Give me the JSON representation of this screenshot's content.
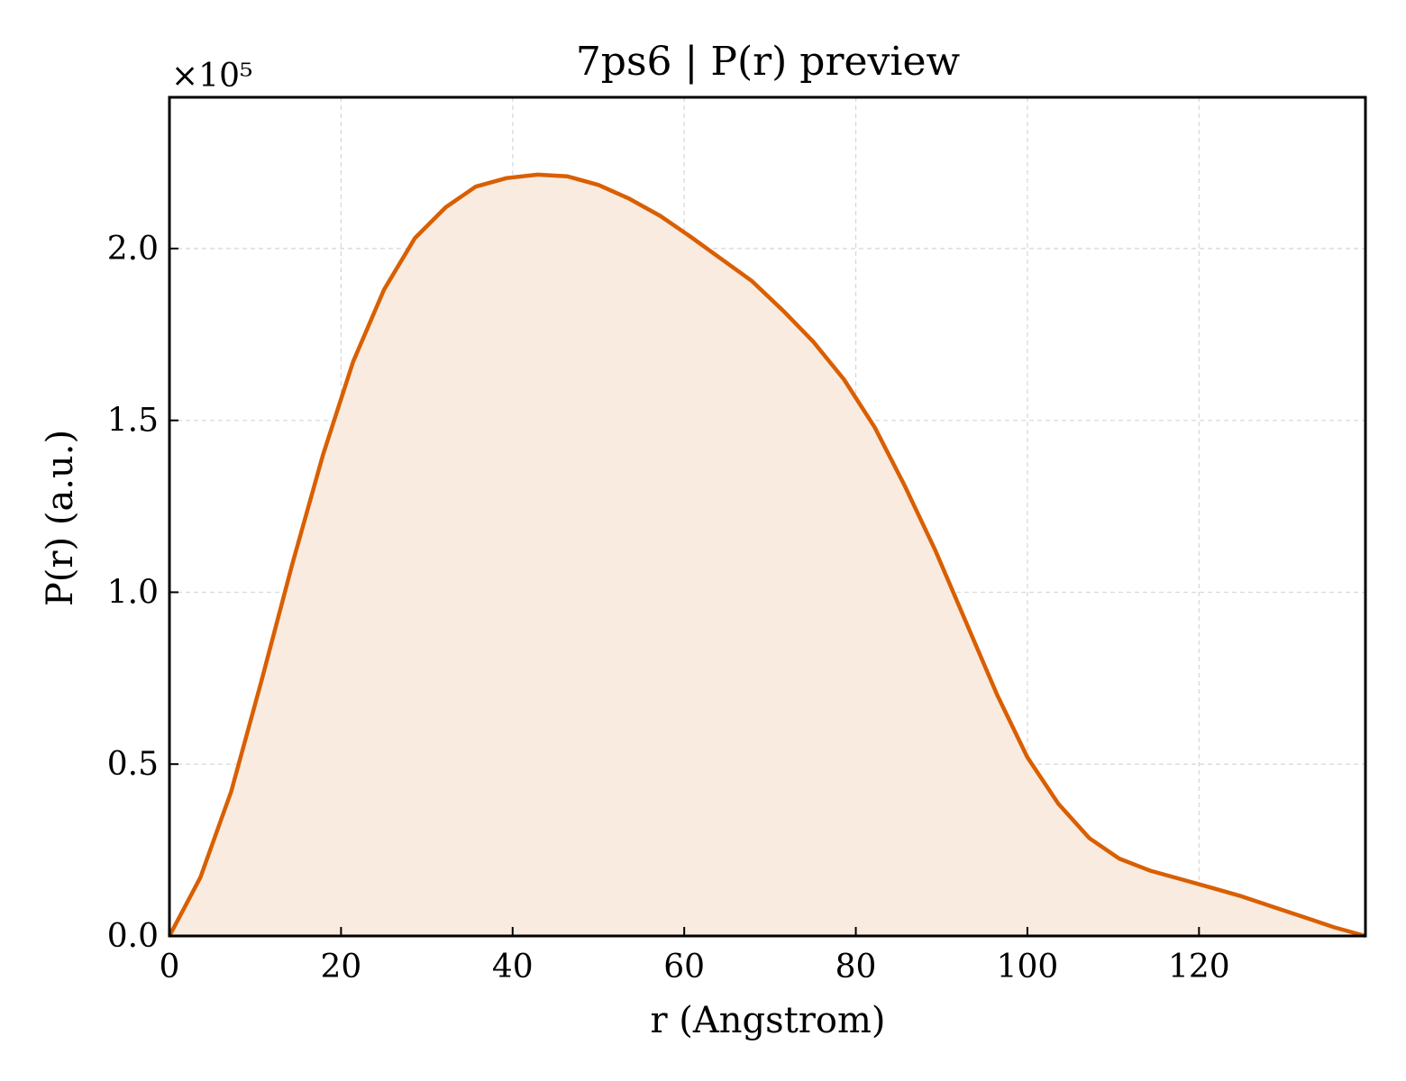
{
  "chart_data": {
    "type": "area",
    "title": "7ps6 | P(r) preview",
    "xlabel": "r (Angstrom)",
    "ylabel": "P(r) (a.u.)",
    "y_scale_label": "×10⁵",
    "y_scale_factor": 100000,
    "xlim": [
      0,
      139.4
    ],
    "ylim": [
      0,
      2.44
    ],
    "x_ticks": [
      0,
      20,
      40,
      60,
      80,
      100,
      120
    ],
    "x_tick_labels": [
      "0",
      "20",
      "40",
      "60",
      "80",
      "100",
      "120"
    ],
    "y_ticks": [
      0,
      0.5,
      1.0,
      1.5,
      2.0
    ],
    "y_tick_labels": [
      "0.0",
      "0.5",
      "1.0",
      "1.5",
      "2.0"
    ],
    "grid": true,
    "legend": "none",
    "series": [
      {
        "x": [
          0,
          3.6,
          7.2,
          10.7,
          14.3,
          17.9,
          21.4,
          25.0,
          28.6,
          32.2,
          35.7,
          39.3,
          42.9,
          46.4,
          50.0,
          53.6,
          57.2,
          60.7,
          64.3,
          67.9,
          71.5,
          75.0,
          78.6,
          82.2,
          85.7,
          89.3,
          92.9,
          96.5,
          100.0,
          103.6,
          107.2,
          110.7,
          114.3,
          117.9,
          121.5,
          125.0,
          128.6,
          132.2,
          135.8,
          139.4
        ],
        "y": [
          0.0,
          0.17,
          0.42,
          0.74,
          1.08,
          1.4,
          1.67,
          1.88,
          2.03,
          2.12,
          2.18,
          2.205,
          2.215,
          2.21,
          2.185,
          2.145,
          2.095,
          2.035,
          1.97,
          1.905,
          1.82,
          1.73,
          1.62,
          1.48,
          1.31,
          1.12,
          0.91,
          0.7,
          0.52,
          0.385,
          0.285,
          0.225,
          0.19,
          0.165,
          0.14,
          0.115,
          0.085,
          0.055,
          0.025,
          0.0
        ],
        "color": "#D95F02",
        "fill_color": "#F9EBE0"
      }
    ]
  }
}
